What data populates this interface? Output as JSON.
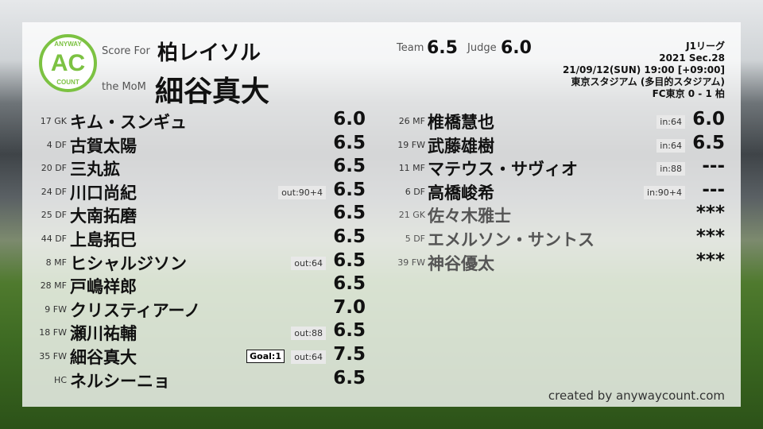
{
  "logo": {
    "top": "ANYWAY",
    "mid": "AC",
    "bottom": "COUNT"
  },
  "header": {
    "score_for_label": "Score For",
    "team": "柏レイソル",
    "mom_label": "the MoM",
    "mom": "細谷真大",
    "team_label": "Team",
    "team_score": "6.5",
    "judge_label": "Judge",
    "judge_score": "6.0"
  },
  "match": {
    "league": "J1リーグ",
    "section": "2021 Sec.28",
    "datetime": "21/09/12(SUN) 19:00 [+09:00]",
    "venue": "東京スタジアム (多目的スタジアム)",
    "result": "FC東京 0 - 1 柏"
  },
  "starters": [
    {
      "num": "17 GK",
      "name": "キム・スンギュ",
      "badge": "",
      "goal": "",
      "score": "6.0"
    },
    {
      "num": "4 DF",
      "name": "古賀太陽",
      "badge": "",
      "goal": "",
      "score": "6.5"
    },
    {
      "num": "20 DF",
      "name": "三丸拡",
      "badge": "",
      "goal": "",
      "score": "6.5"
    },
    {
      "num": "24 DF",
      "name": "川口尚紀",
      "badge": "out:90+4",
      "goal": "",
      "score": "6.5"
    },
    {
      "num": "25 DF",
      "name": "大南拓磨",
      "badge": "",
      "goal": "",
      "score": "6.5"
    },
    {
      "num": "44 DF",
      "name": "上島拓巳",
      "badge": "",
      "goal": "",
      "score": "6.5"
    },
    {
      "num": "8 MF",
      "name": "ヒシャルジソン",
      "badge": "out:64",
      "goal": "",
      "score": "6.5"
    },
    {
      "num": "28 MF",
      "name": "戸嶋祥郎",
      "badge": "",
      "goal": "",
      "score": "6.5"
    },
    {
      "num": "9 FW",
      "name": "クリスティアーノ",
      "badge": "",
      "goal": "",
      "score": "7.0"
    },
    {
      "num": "18 FW",
      "name": "瀬川祐輔",
      "badge": "out:88",
      "goal": "",
      "score": "6.5"
    },
    {
      "num": "35 FW",
      "name": "細谷真大",
      "badge": "out:64",
      "goal": "Goal:1",
      "score": "7.5"
    },
    {
      "num": "HC",
      "name": "ネルシーニョ",
      "badge": "",
      "goal": "",
      "score": "6.5"
    }
  ],
  "subs": [
    {
      "num": "26 MF",
      "name": "椎橋慧也",
      "badge": "in:64",
      "score": "6.0"
    },
    {
      "num": "19 FW",
      "name": "武藤雄樹",
      "badge": "in:64",
      "score": "6.5"
    },
    {
      "num": "11 MF",
      "name": "マテウス・サヴィオ",
      "badge": "in:88",
      "score": "---"
    },
    {
      "num": "6 DF",
      "name": "高橋峻希",
      "badge": "in:90+4",
      "score": "---"
    },
    {
      "num": "21 GK",
      "name": "佐々木雅士",
      "badge": "",
      "score": "***",
      "unused": true
    },
    {
      "num": "5 DF",
      "name": "エメルソン・サントス",
      "badge": "",
      "score": "***",
      "unused": true
    },
    {
      "num": "39 FW",
      "name": "神谷優太",
      "badge": "",
      "score": "***",
      "unused": true
    }
  ],
  "credit": "created by anywaycount.com",
  "colors": {
    "brand": "#7cc242"
  }
}
